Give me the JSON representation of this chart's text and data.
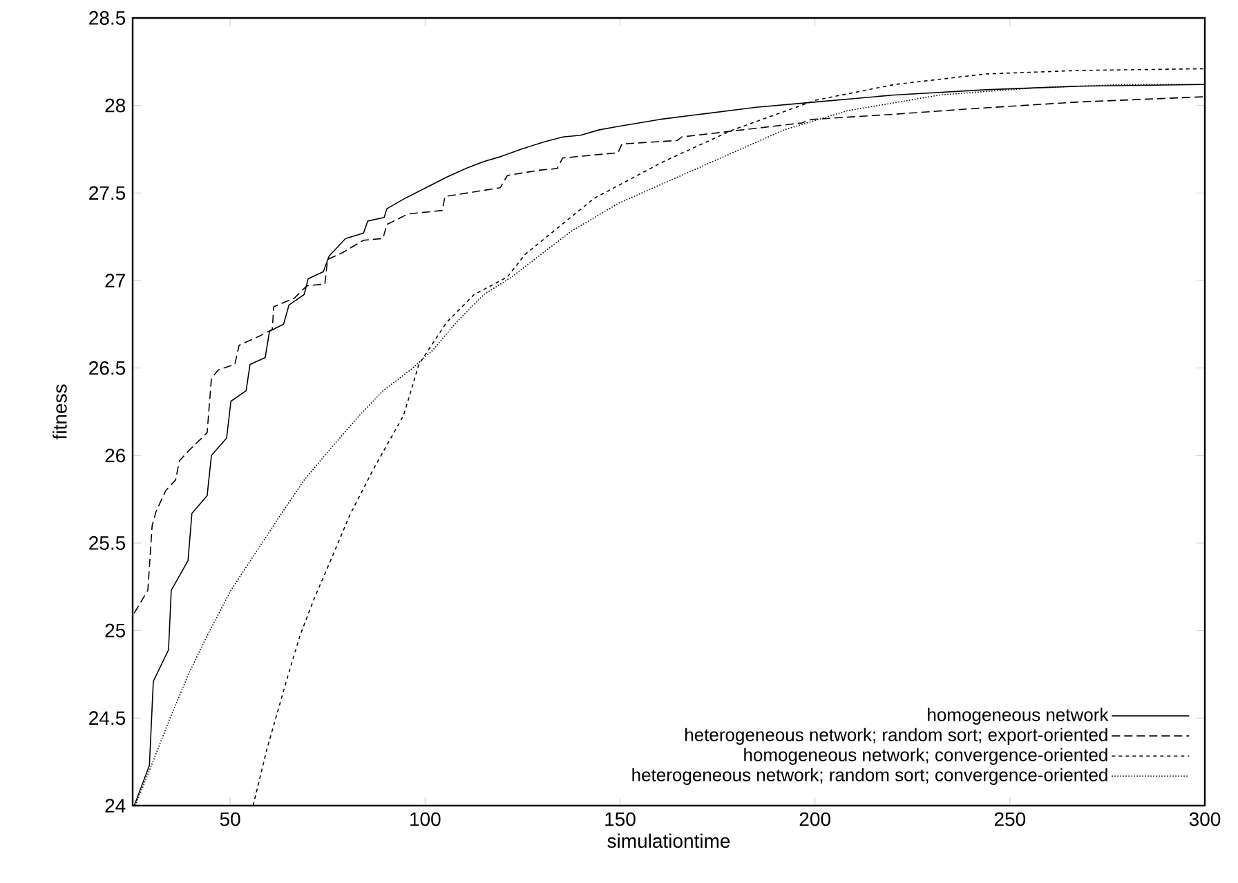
{
  "chart_data": {
    "type": "line",
    "xlabel": "simulationtime",
    "ylabel": "fitness",
    "xlim": [
      25,
      300
    ],
    "ylim": [
      24,
      28.5
    ],
    "xticks": [
      50,
      100,
      150,
      200,
      250,
      300
    ],
    "yticks": [
      24,
      24.5,
      25,
      25.5,
      26,
      26.5,
      27,
      27.5,
      28,
      28.5
    ],
    "grid": false,
    "legend": "bottom right",
    "series": [
      {
        "name": "homogeneous network",
        "color": "#000000",
        "line_style": "solid",
        "x": [
          25.4,
          29.3,
          30.3,
          34.2,
          34.9,
          39.2,
          40.2,
          44.1,
          45.2,
          49.1,
          50.2,
          54.1,
          55.1,
          59.0,
          60.1,
          63.7,
          65.1,
          69.0,
          70.0,
          73.9,
          75.4,
          79.6,
          84.2,
          85.3,
          89.5,
          90.2,
          94.9,
          100.2,
          105.5,
          110.5,
          115.1,
          119.7,
          124.6,
          130.3,
          135.3,
          139.9,
          144.5,
          149.5,
          160.1,
          170.7,
          184.9,
          200.2,
          220.4,
          243.8,
          267.6,
          300
        ],
        "values": [
          24.0,
          24.23,
          24.71,
          24.89,
          25.23,
          25.4,
          25.67,
          25.77,
          26.0,
          26.1,
          26.31,
          26.37,
          26.52,
          26.56,
          26.71,
          26.75,
          26.86,
          26.92,
          27.01,
          27.05,
          27.14,
          27.24,
          27.27,
          27.34,
          27.36,
          27.41,
          27.47,
          27.53,
          27.59,
          27.64,
          27.68,
          27.71,
          27.75,
          27.79,
          27.82,
          27.83,
          27.86,
          27.88,
          27.92,
          27.95,
          27.99,
          28.02,
          28.06,
          28.09,
          28.11,
          28.12
        ]
      },
      {
        "name": "heterogeneous network; random sort; export-oriented",
        "color": "#000000",
        "line_style": "dashed",
        "x": [
          25.4,
          28.9,
          30.0,
          31.0,
          33.5,
          36.0,
          37.0,
          39.5,
          44.1,
          45.2,
          47.0,
          51.2,
          52.3,
          57.3,
          60.8,
          61.2,
          66.5,
          69.7,
          74.3,
          75.0,
          78.9,
          84.2,
          89.2,
          90.2,
          95.6,
          104.4,
          105.1,
          119.3,
          121.1,
          129.3,
          133.9,
          135.3,
          149.5,
          150.5,
          164.7,
          165.8,
          196.6,
          199.1,
          220.4,
          239.2,
          267.6,
          300
        ],
        "values": [
          25.1,
          25.23,
          25.6,
          25.68,
          25.8,
          25.86,
          25.97,
          26.03,
          26.13,
          26.44,
          26.49,
          26.52,
          26.63,
          26.68,
          26.72,
          26.85,
          26.9,
          26.97,
          26.98,
          27.12,
          27.16,
          27.23,
          27.24,
          27.32,
          27.38,
          27.4,
          27.48,
          27.53,
          27.6,
          27.63,
          27.64,
          27.7,
          27.73,
          27.78,
          27.8,
          27.82,
          27.9,
          27.92,
          27.95,
          27.98,
          28.02,
          28.05
        ]
      },
      {
        "name": "homogeneous network; convergence-oriented",
        "color": "#000000",
        "line_style": "dashed",
        "x": [
          55.9,
          59.4,
          64.4,
          67.9,
          71.5,
          75.0,
          80.7,
          86.7,
          94.5,
          98.4,
          105.5,
          112.6,
          121.1,
          125.7,
          143.4,
          161.2,
          178.9,
          200.2,
          220.4,
          243.8,
          267.6,
          300
        ],
        "values": [
          24.0,
          24.32,
          24.71,
          24.97,
          25.18,
          25.36,
          25.66,
          25.92,
          26.23,
          26.52,
          26.76,
          26.92,
          27.02,
          27.15,
          27.47,
          27.68,
          27.86,
          28.03,
          28.12,
          28.18,
          28.2,
          28.21
        ]
      },
      {
        "name": "heterogeneous network; random sort; convergence-oriented",
        "color": "#000000",
        "line_style": "dotted",
        "x": [
          25.7,
          30.0,
          34.6,
          39.5,
          44.1,
          50.2,
          57.3,
          62.9,
          69.0,
          75.0,
          83.2,
          89.2,
          96.3,
          101.9,
          108.0,
          115.1,
          122.2,
          125.7,
          137.4,
          149.5,
          164.7,
          178.9,
          192.0,
          208.3,
          232.1,
          255.9,
          279.3,
          300
        ],
        "values": [
          24.0,
          24.24,
          24.5,
          24.76,
          24.97,
          25.23,
          25.47,
          25.66,
          25.86,
          26.02,
          26.23,
          26.37,
          26.49,
          26.6,
          26.76,
          26.92,
          27.02,
          27.08,
          27.28,
          27.44,
          27.59,
          27.73,
          27.86,
          27.97,
          28.06,
          28.1,
          28.12,
          28.12
        ]
      }
    ]
  }
}
